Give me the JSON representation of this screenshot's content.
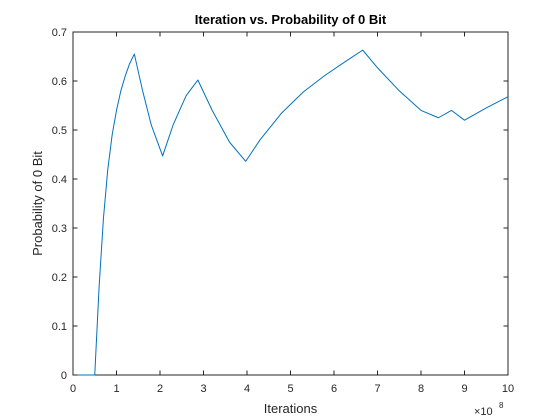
{
  "chart_data": {
    "type": "line",
    "title": "Iteration vs. Probability of 0 Bit",
    "xlabel": "Iterations",
    "ylabel": "Probability of 0 Bit",
    "x_multiplier": {
      "base": "×10",
      "exponent": "8"
    },
    "xlim": [
      0,
      10
    ],
    "ylim": [
      0,
      0.7
    ],
    "xticks": [
      0,
      1,
      2,
      3,
      4,
      5,
      6,
      7,
      8,
      9,
      10
    ],
    "yticks": [
      0,
      0.1,
      0.2,
      0.3,
      0.4,
      0.5,
      0.6,
      0.7
    ],
    "xtick_labels": [
      "0",
      "1",
      "2",
      "3",
      "4",
      "5",
      "6",
      "7",
      "8",
      "9",
      "10"
    ],
    "ytick_labels": [
      "0",
      "0.1",
      "0.2",
      "0.3",
      "0.4",
      "0.5",
      "0.6",
      "0.7"
    ],
    "grid": false,
    "series": [
      {
        "color": "#0072bd",
        "x": [
          0,
          0.5,
          0.6,
          0.7,
          0.8,
          0.9,
          1.0,
          1.1,
          1.2,
          1.3,
          1.41,
          1.6,
          1.8,
          2.06,
          2.3,
          2.6,
          2.87,
          3.2,
          3.6,
          3.97,
          4.3,
          4.8,
          5.3,
          5.8,
          6.3,
          6.66,
          7.0,
          7.5,
          8.0,
          8.4,
          8.7,
          9.0,
          9.5,
          10.0
        ],
        "y": [
          0,
          0,
          0.18,
          0.32,
          0.42,
          0.49,
          0.54,
          0.58,
          0.61,
          0.635,
          0.655,
          0.58,
          0.51,
          0.447,
          0.51,
          0.57,
          0.602,
          0.54,
          0.475,
          0.436,
          0.48,
          0.535,
          0.578,
          0.612,
          0.642,
          0.663,
          0.627,
          0.58,
          0.54,
          0.525,
          0.54,
          0.52,
          0.545,
          0.568
        ]
      }
    ]
  }
}
